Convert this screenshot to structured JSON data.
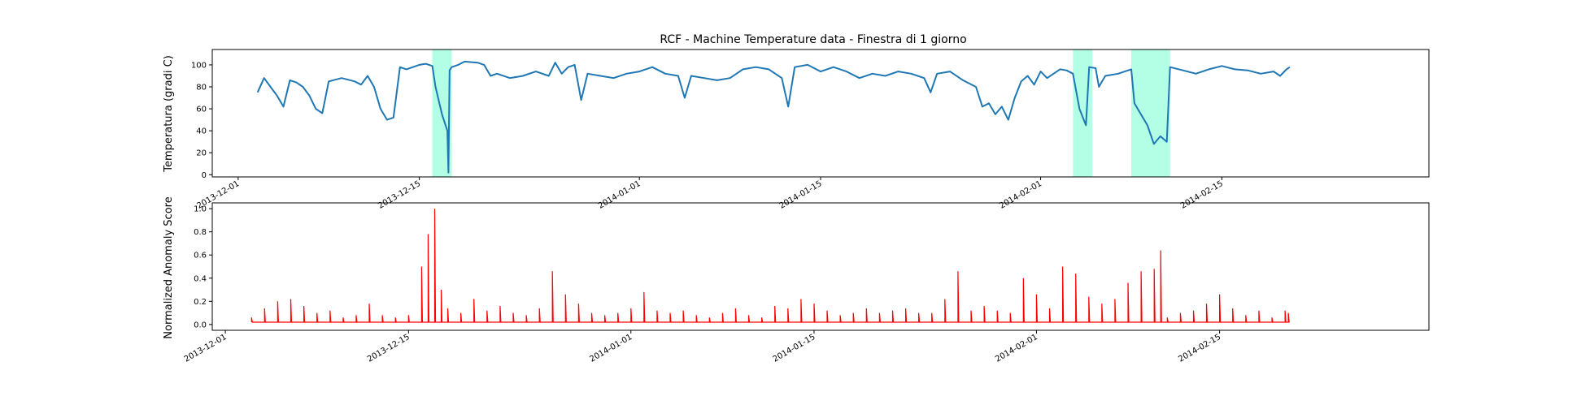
{
  "chart_data": [
    {
      "type": "line",
      "title": "RCF -  Machine Temperature data - Finestra di 1 giorno",
      "ylabel": "Temperatura (gradi C)",
      "xlabel": "",
      "x_range": [
        "2013-12-02",
        "2014-02-21"
      ],
      "x_tick_labels": [
        "2013-12-01",
        "2013-12-15",
        "2014-01-01",
        "2014-01-15",
        "2014-02-01",
        "2014-02-15"
      ],
      "ylim": [
        -2,
        114
      ],
      "y_ticks": [
        0,
        20,
        40,
        60,
        80,
        100
      ],
      "grid": false,
      "line_color": "#1f77b4",
      "highlight_color": "#7fffd4",
      "highlight_ranges": [
        {
          "start": "2013-12-16T00:00",
          "end": "2013-12-17T12:00"
        },
        {
          "start": "2014-02-03T12:00",
          "end": "2014-02-05T00:00"
        },
        {
          "start": "2014-02-08T00:00",
          "end": "2014-02-11T00:00"
        }
      ],
      "series": [
        {
          "points": [
            [
              "2013-12-02T12:00",
              75
            ],
            [
              "2013-12-03T00:00",
              88
            ],
            [
              "2013-12-03T12:00",
              80
            ],
            [
              "2013-12-04T00:00",
              72
            ],
            [
              "2013-12-04T12:00",
              62
            ],
            [
              "2013-12-05T00:00",
              86
            ],
            [
              "2013-12-05T12:00",
              84
            ],
            [
              "2013-12-06T00:00",
              80
            ],
            [
              "2013-12-06T12:00",
              72
            ],
            [
              "2013-12-07T00:00",
              60
            ],
            [
              "2013-12-07T12:00",
              56
            ],
            [
              "2013-12-08T00:00",
              85
            ],
            [
              "2013-12-09T00:00",
              88
            ],
            [
              "2013-12-10T00:00",
              85
            ],
            [
              "2013-12-10T12:00",
              82
            ],
            [
              "2013-12-11T00:00",
              90
            ],
            [
              "2013-12-11T12:00",
              80
            ],
            [
              "2013-12-12T00:00",
              60
            ],
            [
              "2013-12-12T12:00",
              50
            ],
            [
              "2013-12-13T00:00",
              52
            ],
            [
              "2013-12-13T12:00",
              98
            ],
            [
              "2013-12-14T00:00",
              96
            ],
            [
              "2013-12-14T12:00",
              98
            ],
            [
              "2013-12-15T00:00",
              100
            ],
            [
              "2013-12-15T12:00",
              101
            ],
            [
              "2013-12-16T00:00",
              99
            ],
            [
              "2013-12-16T06:00",
              80
            ],
            [
              "2013-12-16T18:00",
              55
            ],
            [
              "2013-12-17T04:00",
              40
            ],
            [
              "2013-12-17T06:00",
              2
            ],
            [
              "2013-12-17T08:00",
              95
            ],
            [
              "2013-12-17T12:00",
              98
            ],
            [
              "2013-12-18T00:00",
              100
            ],
            [
              "2013-12-18T12:00",
              103
            ],
            [
              "2013-12-19T12:00",
              102
            ],
            [
              "2013-12-20T00:00",
              100
            ],
            [
              "2013-12-20T12:00",
              90
            ],
            [
              "2013-12-21T00:00",
              92
            ],
            [
              "2013-12-22T00:00",
              88
            ],
            [
              "2013-12-23T00:00",
              90
            ],
            [
              "2013-12-24T00:00",
              94
            ],
            [
              "2013-12-25T00:00",
              90
            ],
            [
              "2013-12-25T12:00",
              102
            ],
            [
              "2013-12-26T00:00",
              92
            ],
            [
              "2013-12-26T12:00",
              98
            ],
            [
              "2013-12-27T00:00",
              100
            ],
            [
              "2013-12-27T12:00",
              68
            ],
            [
              "2013-12-28T00:00",
              92
            ],
            [
              "2013-12-29T00:00",
              90
            ],
            [
              "2013-12-30T00:00",
              88
            ],
            [
              "2013-12-31T00:00",
              92
            ],
            [
              "2014-01-01T00:00",
              94
            ],
            [
              "2014-01-02T00:00",
              98
            ],
            [
              "2014-01-03T00:00",
              92
            ],
            [
              "2014-01-04T00:00",
              90
            ],
            [
              "2014-01-04T12:00",
              70
            ],
            [
              "2014-01-05T00:00",
              90
            ],
            [
              "2014-01-06T00:00",
              88
            ],
            [
              "2014-01-07T00:00",
              86
            ],
            [
              "2014-01-08T00:00",
              88
            ],
            [
              "2014-01-09T00:00",
              96
            ],
            [
              "2014-01-10T00:00",
              98
            ],
            [
              "2014-01-11T00:00",
              96
            ],
            [
              "2014-01-12T00:00",
              88
            ],
            [
              "2014-01-12T12:00",
              62
            ],
            [
              "2014-01-13T00:00",
              98
            ],
            [
              "2014-01-14T00:00",
              100
            ],
            [
              "2014-01-15T00:00",
              94
            ],
            [
              "2014-01-16T00:00",
              98
            ],
            [
              "2014-01-17T00:00",
              94
            ],
            [
              "2014-01-18T00:00",
              88
            ],
            [
              "2014-01-19T00:00",
              92
            ],
            [
              "2014-01-20T00:00",
              90
            ],
            [
              "2014-01-21T00:00",
              94
            ],
            [
              "2014-01-22T00:00",
              92
            ],
            [
              "2014-01-23T00:00",
              88
            ],
            [
              "2014-01-23T12:00",
              75
            ],
            [
              "2014-01-24T00:00",
              92
            ],
            [
              "2014-01-25T00:00",
              94
            ],
            [
              "2014-01-26T00:00",
              86
            ],
            [
              "2014-01-27T00:00",
              80
            ],
            [
              "2014-01-27T12:00",
              62
            ],
            [
              "2014-01-28T00:00",
              65
            ],
            [
              "2014-01-28T12:00",
              55
            ],
            [
              "2014-01-29T00:00",
              62
            ],
            [
              "2014-01-29T12:00",
              50
            ],
            [
              "2014-01-30T00:00",
              70
            ],
            [
              "2014-01-30T12:00",
              85
            ],
            [
              "2014-01-31T00:00",
              90
            ],
            [
              "2014-01-31T12:00",
              82
            ],
            [
              "2014-02-01T00:00",
              94
            ],
            [
              "2014-02-01T12:00",
              88
            ],
            [
              "2014-02-02T00:00",
              92
            ],
            [
              "2014-02-02T12:00",
              96
            ],
            [
              "2014-02-03T00:00",
              95
            ],
            [
              "2014-02-03T12:00",
              92
            ],
            [
              "2014-02-04T00:00",
              60
            ],
            [
              "2014-02-04T12:00",
              45
            ],
            [
              "2014-02-04T18:00",
              98
            ],
            [
              "2014-02-05T06:00",
              97
            ],
            [
              "2014-02-05T12:00",
              80
            ],
            [
              "2014-02-06T00:00",
              90
            ],
            [
              "2014-02-07T00:00",
              92
            ],
            [
              "2014-02-07T12:00",
              94
            ],
            [
              "2014-02-08T00:00",
              96
            ],
            [
              "2014-02-08T06:00",
              65
            ],
            [
              "2014-02-09T06:00",
              45
            ],
            [
              "2014-02-09T18:00",
              28
            ],
            [
              "2014-02-10T06:00",
              35
            ],
            [
              "2014-02-10T18:00",
              30
            ],
            [
              "2014-02-11T00:00",
              98
            ],
            [
              "2014-02-12T00:00",
              95
            ],
            [
              "2014-02-13T00:00",
              92
            ],
            [
              "2014-02-14T00:00",
              96
            ],
            [
              "2014-02-15T00:00",
              99
            ],
            [
              "2014-02-16T00:00",
              96
            ],
            [
              "2014-02-17T00:00",
              95
            ],
            [
              "2014-02-18T00:00",
              92
            ],
            [
              "2014-02-19T00:00",
              94
            ],
            [
              "2014-02-19T12:00",
              90
            ],
            [
              "2014-02-20T00:00",
              96
            ],
            [
              "2014-02-20T06:00",
              98
            ]
          ]
        }
      ]
    },
    {
      "type": "line",
      "title": "",
      "ylabel": "Normalized Anomaly Score",
      "xlabel": "",
      "x_range": [
        "2013-12-01",
        "2014-02-21"
      ],
      "x_tick_labels": [
        "2013-12-01",
        "2013-12-15",
        "2014-01-01",
        "2014-01-15",
        "2014-02-01",
        "2014-02-15"
      ],
      "ylim": [
        -0.05,
        1.05
      ],
      "y_ticks": [
        0.0,
        0.2,
        0.4,
        0.6,
        0.8,
        1.0
      ],
      "grid": false,
      "line_color": "#ff0000",
      "series": [
        {
          "points": [
            [
              "2013-12-03T00:00",
              0.06
            ],
            [
              "2013-12-04T00:00",
              0.14
            ],
            [
              "2013-12-05T00:00",
              0.2
            ],
            [
              "2013-12-06T00:00",
              0.22
            ],
            [
              "2013-12-07T00:00",
              0.16
            ],
            [
              "2013-12-08T00:00",
              0.1
            ],
            [
              "2013-12-09T00:00",
              0.12
            ],
            [
              "2013-12-10T00:00",
              0.06
            ],
            [
              "2013-12-11T00:00",
              0.08
            ],
            [
              "2013-12-12T00:00",
              0.18
            ],
            [
              "2013-12-13T00:00",
              0.08
            ],
            [
              "2013-12-14T00:00",
              0.06
            ],
            [
              "2013-12-15T00:00",
              0.08
            ],
            [
              "2013-12-16T00:00",
              0.5
            ],
            [
              "2013-12-16T12:00",
              0.78
            ],
            [
              "2013-12-17T00:00",
              1.0
            ],
            [
              "2013-12-17T12:00",
              0.3
            ],
            [
              "2013-12-18T00:00",
              0.14
            ],
            [
              "2013-12-19T00:00",
              0.1
            ],
            [
              "2013-12-20T00:00",
              0.22
            ],
            [
              "2013-12-21T00:00",
              0.12
            ],
            [
              "2013-12-22T00:00",
              0.16
            ],
            [
              "2013-12-23T00:00",
              0.1
            ],
            [
              "2013-12-24T00:00",
              0.08
            ],
            [
              "2013-12-25T00:00",
              0.14
            ],
            [
              "2013-12-26T00:00",
              0.46
            ],
            [
              "2013-12-27T00:00",
              0.26
            ],
            [
              "2013-12-28T00:00",
              0.18
            ],
            [
              "2013-12-29T00:00",
              0.1
            ],
            [
              "2013-12-30T00:00",
              0.08
            ],
            [
              "2013-12-31T00:00",
              0.1
            ],
            [
              "2014-01-01T00:00",
              0.14
            ],
            [
              "2014-01-02T00:00",
              0.28
            ],
            [
              "2014-01-03T00:00",
              0.12
            ],
            [
              "2014-01-04T00:00",
              0.1
            ],
            [
              "2014-01-05T00:00",
              0.12
            ],
            [
              "2014-01-06T00:00",
              0.08
            ],
            [
              "2014-01-07T00:00",
              0.06
            ],
            [
              "2014-01-08T00:00",
              0.1
            ],
            [
              "2014-01-09T00:00",
              0.14
            ],
            [
              "2014-01-10T00:00",
              0.08
            ],
            [
              "2014-01-11T00:00",
              0.06
            ],
            [
              "2014-01-12T00:00",
              0.16
            ],
            [
              "2014-01-13T00:00",
              0.14
            ],
            [
              "2014-01-14T00:00",
              0.22
            ],
            [
              "2014-01-15T00:00",
              0.18
            ],
            [
              "2014-01-16T00:00",
              0.12
            ],
            [
              "2014-01-17T00:00",
              0.08
            ],
            [
              "2014-01-18T00:00",
              0.1
            ],
            [
              "2014-01-19T00:00",
              0.14
            ],
            [
              "2014-01-20T00:00",
              0.1
            ],
            [
              "2014-01-21T00:00",
              0.12
            ],
            [
              "2014-01-22T00:00",
              0.14
            ],
            [
              "2014-01-23T00:00",
              0.1
            ],
            [
              "2014-01-24T00:00",
              0.1
            ],
            [
              "2014-01-25T00:00",
              0.22
            ],
            [
              "2014-01-26T00:00",
              0.46
            ],
            [
              "2014-01-27T00:00",
              0.12
            ],
            [
              "2014-01-28T00:00",
              0.16
            ],
            [
              "2014-01-29T00:00",
              0.12
            ],
            [
              "2014-01-30T00:00",
              0.1
            ],
            [
              "2014-01-31T00:00",
              0.4
            ],
            [
              "2014-02-01T00:00",
              0.26
            ],
            [
              "2014-02-02T00:00",
              0.14
            ],
            [
              "2014-02-03T00:00",
              0.5
            ],
            [
              "2014-02-04T00:00",
              0.44
            ],
            [
              "2014-02-05T00:00",
              0.24
            ],
            [
              "2014-02-06T00:00",
              0.18
            ],
            [
              "2014-02-07T00:00",
              0.22
            ],
            [
              "2014-02-08T00:00",
              0.36
            ],
            [
              "2014-02-09T00:00",
              0.46
            ],
            [
              "2014-02-10T00:00",
              0.48
            ],
            [
              "2014-02-10T12:00",
              0.64
            ],
            [
              "2014-02-11T00:00",
              0.06
            ],
            [
              "2014-02-12T00:00",
              0.1
            ],
            [
              "2014-02-13T00:00",
              0.12
            ],
            [
              "2014-02-14T00:00",
              0.18
            ],
            [
              "2014-02-15T00:00",
              0.26
            ],
            [
              "2014-02-16T00:00",
              0.14
            ],
            [
              "2014-02-17T00:00",
              0.08
            ],
            [
              "2014-02-18T00:00",
              0.12
            ],
            [
              "2014-02-19T00:00",
              0.06
            ],
            [
              "2014-02-20T00:00",
              0.12
            ],
            [
              "2014-02-20T06:00",
              0.1
            ]
          ]
        }
      ]
    }
  ]
}
